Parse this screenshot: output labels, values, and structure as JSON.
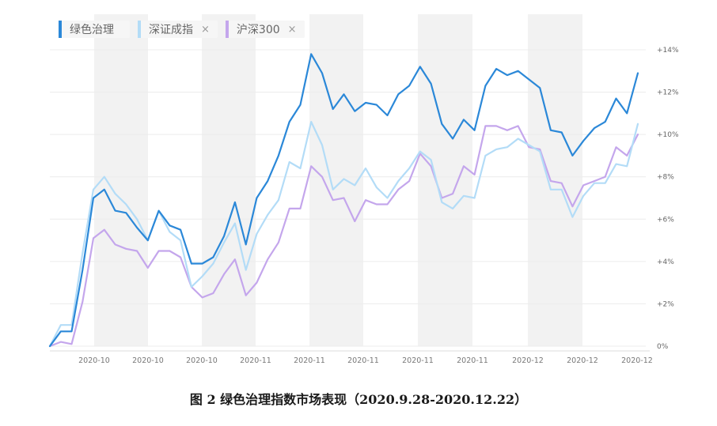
{
  "legend": {
    "items": [
      {
        "label": "绿色治理",
        "color": "#2b88d8",
        "close": ""
      },
      {
        "label": "深证成指",
        "color": "#b3dcf7",
        "close": "×"
      },
      {
        "label": "沪深300",
        "color": "#c4a6ec",
        "close": "×"
      }
    ]
  },
  "caption": "图 2  绿色治理指数市场表现（2020.9.28-2020.12.22）",
  "chart_data": {
    "type": "line",
    "grid": true,
    "ylim": [
      0,
      14
    ],
    "y_ticks": [
      "0%",
      "+2%",
      "+4%",
      "+6%",
      "+8%",
      "+10%",
      "+12%",
      "+14%"
    ],
    "x_ticks": [
      "2020-10",
      "2020-10",
      "2020-10",
      "2020-11",
      "2020-11",
      "2020-11",
      "2020-11",
      "2020-11",
      "2020-12",
      "2020-12",
      "2020-12"
    ],
    "series": [
      {
        "name": "绿色治理",
        "color": "#2b88d8",
        "values": [
          0,
          0.7,
          0.7,
          3.6,
          7.0,
          7.4,
          6.4,
          6.3,
          5.6,
          5.0,
          6.4,
          5.7,
          5.5,
          3.9,
          3.9,
          4.2,
          5.2,
          6.8,
          4.8,
          7.0,
          7.8,
          9.0,
          10.6,
          11.4,
          13.8,
          12.9,
          11.2,
          11.9,
          11.1,
          11.5,
          11.4,
          10.9,
          11.9,
          12.3,
          13.2,
          12.4,
          10.5,
          9.8,
          10.7,
          10.2,
          12.3,
          13.1,
          12.8,
          13.0,
          12.6,
          12.2,
          10.2,
          10.1,
          9.0,
          9.7,
          10.3,
          10.6,
          11.7,
          11.0,
          12.9
        ]
      },
      {
        "name": "深证成指",
        "color": "#b3dcf7",
        "values": [
          0,
          1.0,
          1.0,
          4.4,
          7.4,
          8.0,
          7.2,
          6.7,
          6.0,
          5.0,
          6.4,
          5.4,
          5.0,
          2.8,
          3.3,
          3.9,
          4.9,
          5.8,
          3.6,
          5.3,
          6.2,
          6.9,
          8.7,
          8.4,
          10.6,
          9.5,
          7.4,
          7.9,
          7.6,
          8.4,
          7.5,
          7.0,
          7.8,
          8.4,
          9.2,
          8.8,
          6.8,
          6.5,
          7.1,
          7.0,
          9.0,
          9.3,
          9.4,
          9.8,
          9.5,
          9.2,
          7.4,
          7.4,
          6.1,
          7.1,
          7.7,
          7.7,
          8.6,
          8.5,
          10.5
        ]
      },
      {
        "name": "沪深300",
        "color": "#c4a6ec",
        "values": [
          0,
          0.2,
          0.1,
          2.1,
          5.1,
          5.5,
          4.8,
          4.6,
          4.5,
          3.7,
          4.5,
          4.5,
          4.2,
          2.8,
          2.3,
          2.5,
          3.4,
          4.1,
          2.4,
          3.0,
          4.1,
          4.9,
          6.5,
          6.5,
          8.5,
          8.0,
          6.9,
          7.0,
          5.9,
          6.9,
          6.7,
          6.7,
          7.4,
          7.8,
          9.1,
          8.5,
          7.0,
          7.2,
          8.5,
          8.1,
          10.4,
          10.4,
          10.2,
          10.4,
          9.4,
          9.3,
          7.8,
          7.7,
          6.6,
          7.6,
          7.8,
          8.0,
          9.4,
          9.0,
          10.0
        ]
      }
    ]
  }
}
